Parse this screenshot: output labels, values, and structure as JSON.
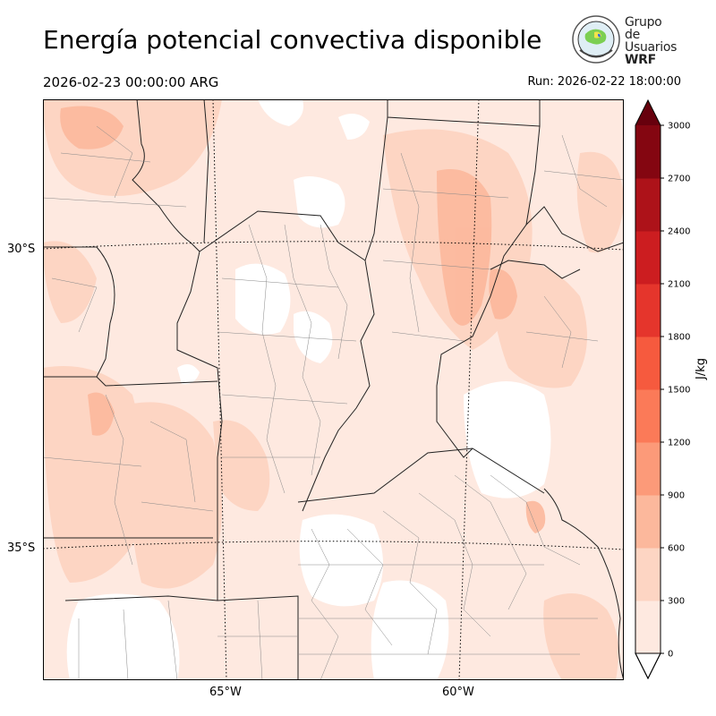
{
  "title": "Energía potencial convectiva disponible",
  "valid_time": "2026-02-23 00:00:00 ARG",
  "run_time": "Run: 2026-02-22 18:00:00",
  "logo": {
    "line1": "Grupo de",
    "line2": "Usuarios",
    "line3": "WRF"
  },
  "map": {
    "lat_labels": [
      "30°S",
      "35°S"
    ],
    "lon_labels": [
      "65°W",
      "60°W"
    ]
  },
  "colorbar": {
    "units": "J/kg",
    "ticks": [
      "0",
      "300",
      "600",
      "900",
      "1200",
      "1500",
      "1800",
      "2100",
      "2400",
      "2700",
      "3000"
    ],
    "colors": [
      "#fee9e0",
      "#fdd5c3",
      "#fcb89c",
      "#fc9a79",
      "#fb7a58",
      "#f65a3e",
      "#e5352c",
      "#cc1d20",
      "#ad1219",
      "#840611",
      "#67000d"
    ]
  }
}
